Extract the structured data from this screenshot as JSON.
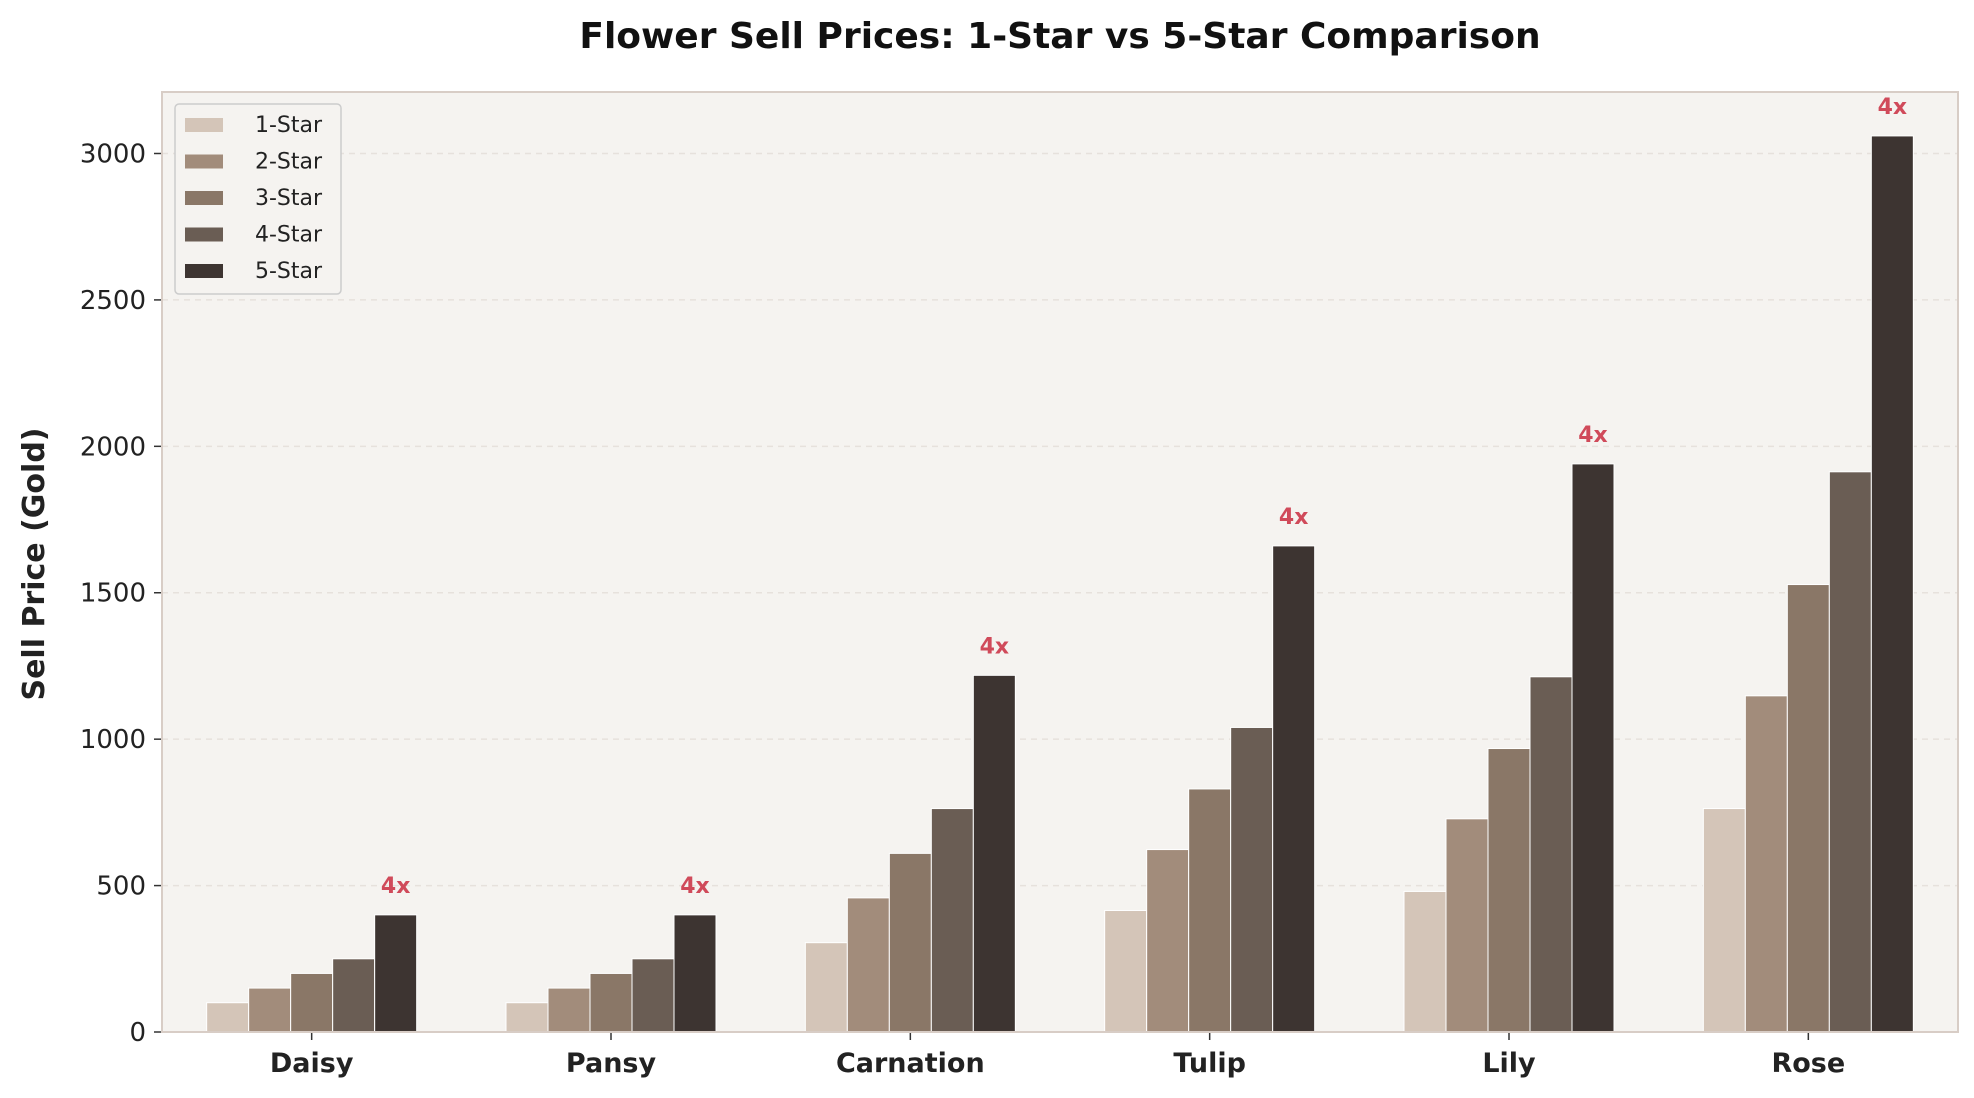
{
  "chart_data": {
    "type": "bar",
    "title": "Flower Sell Prices: 1-Star vs 5-Star Comparison",
    "xlabel": "",
    "ylabel": "Sell Price (Gold)",
    "ylim": [
      0,
      3210
    ],
    "yticks": [
      0,
      500,
      1000,
      1500,
      2000,
      2500,
      3000
    ],
    "grid": "horizontal dashed",
    "legend_position": "top-left",
    "categories": [
      "Daisy",
      "Pansy",
      "Carnation",
      "Tulip",
      "Lily",
      "Rose"
    ],
    "series": [
      {
        "name": "1-Star",
        "color": "#d4c5b8",
        "values": [
          100,
          100,
          305,
          415,
          480,
          763
        ]
      },
      {
        "name": "2-Star",
        "color": "#a28c7b",
        "values": [
          150,
          150,
          458,
          623,
          728,
          1148
        ]
      },
      {
        "name": "3-Star",
        "color": "#8a7767",
        "values": [
          200,
          200,
          610,
          830,
          968,
          1528
        ]
      },
      {
        "name": "4-Star",
        "color": "#6a5d54",
        "values": [
          250,
          250,
          763,
          1040,
          1213,
          1913
        ]
      },
      {
        "name": "5-Star",
        "color": "#3d3431",
        "values": [
          400,
          400,
          1218,
          1660,
          1940,
          3060
        ]
      }
    ],
    "annotations": [
      "4x",
      "4x",
      "4x",
      "4x",
      "4x",
      "4x"
    ],
    "colors": {
      "plot_background": "#f5f3f0",
      "axes_edge": "#d8cdc6",
      "annotation": "#d04a5a",
      "grid": "#e6e1dc"
    }
  }
}
